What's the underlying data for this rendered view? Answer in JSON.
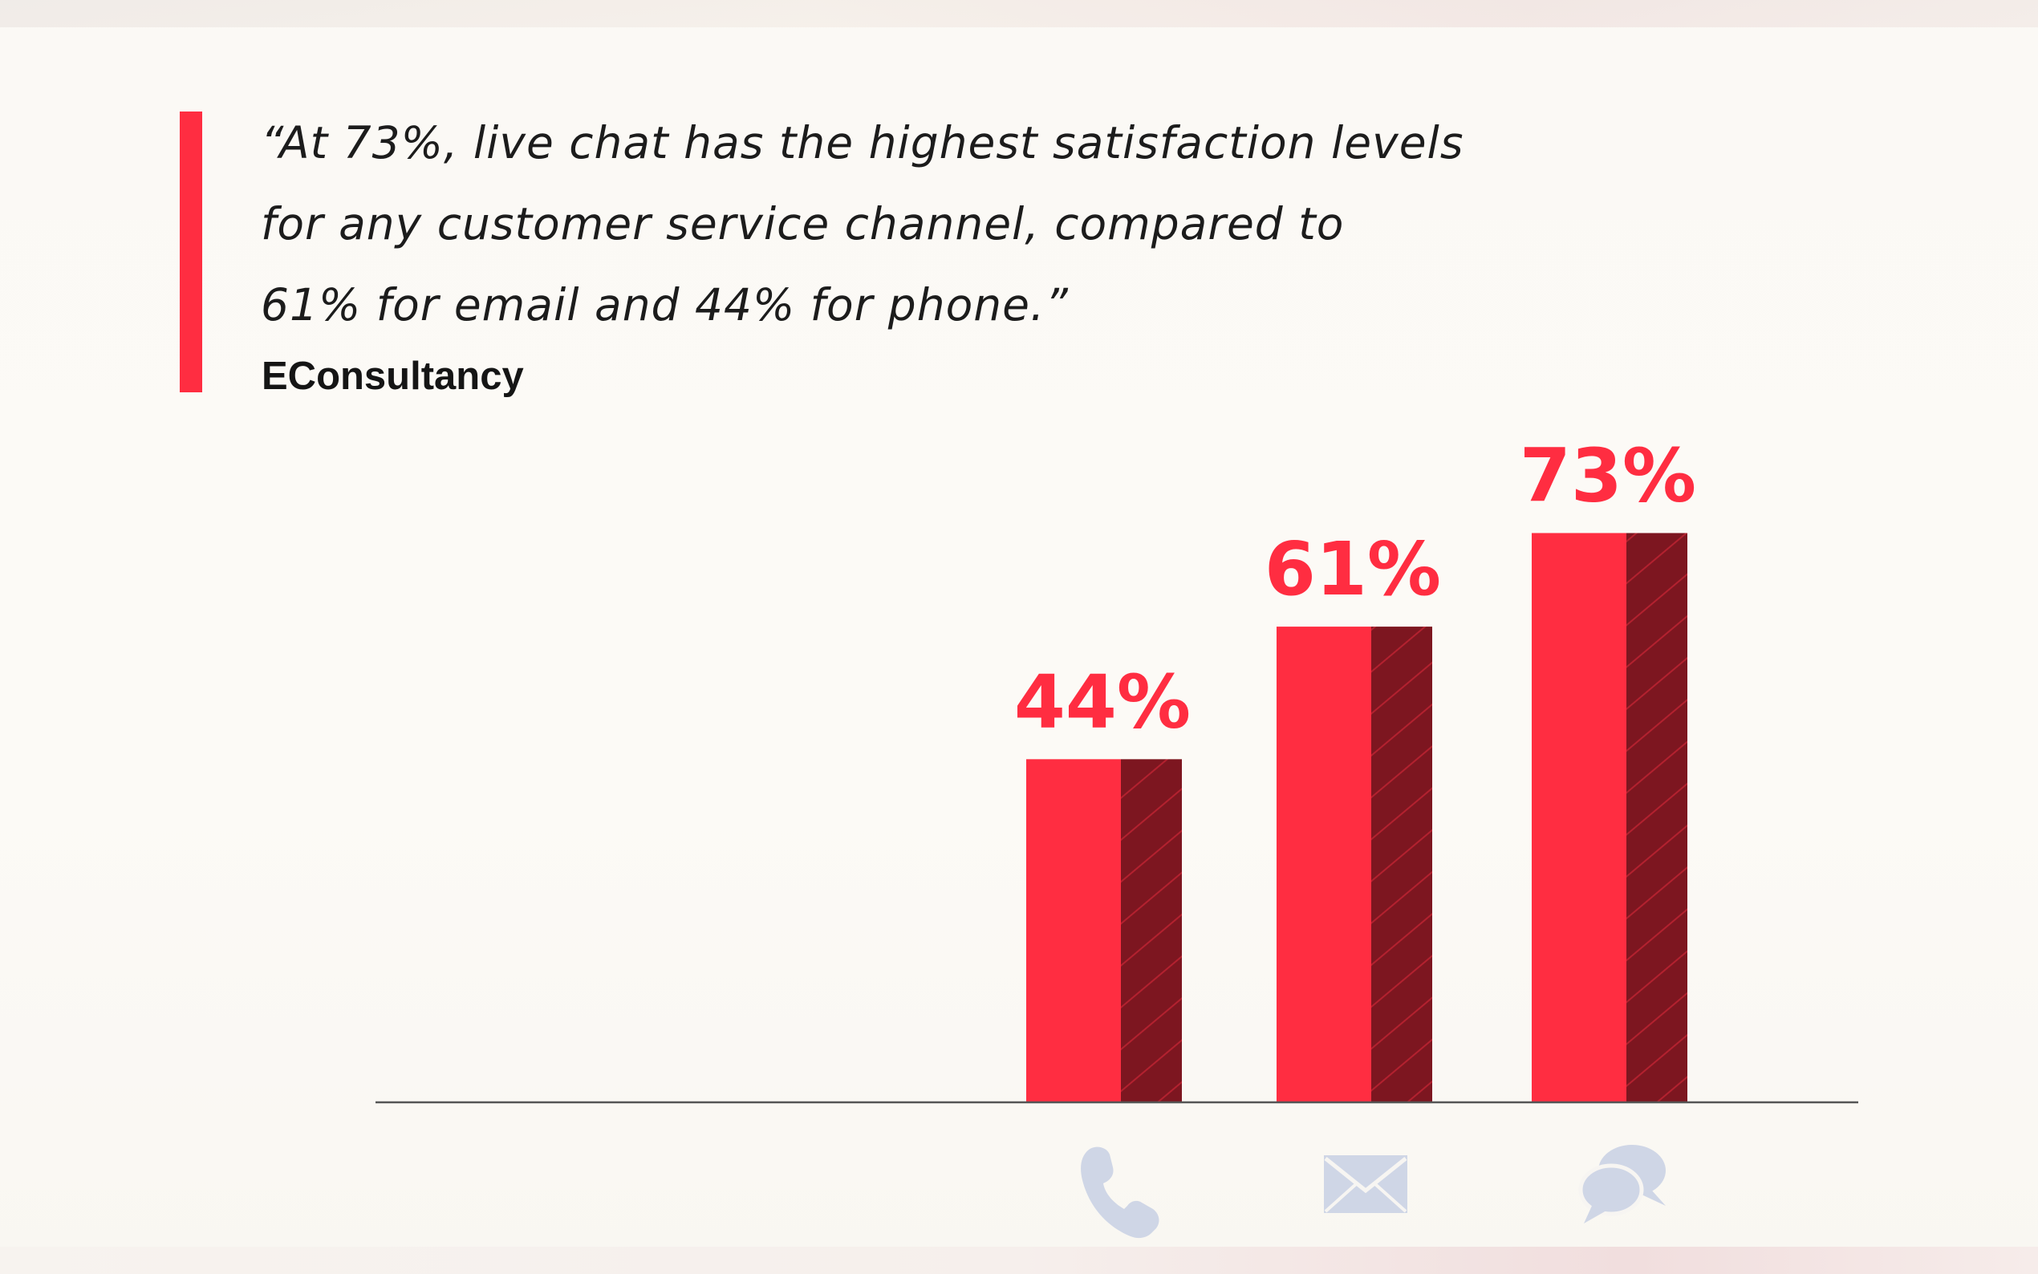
{
  "quote": {
    "lines": [
      "“At 73%, live chat has the highest satisfaction levels",
      "for any customer service channel, compared to",
      "61% for email and 44% for phone.”"
    ],
    "source": "EConsultancy"
  },
  "colors": {
    "accent": "#ff2d41",
    "accent_dark": "#7d1620",
    "icon": "#cfd6e6",
    "text": "#1c1c1c"
  },
  "chart_data": {
    "type": "bar",
    "title": "",
    "xlabel": "",
    "ylabel": "",
    "categories": [
      "Phone",
      "Email",
      "Live chat"
    ],
    "category_icons": [
      "phone-icon",
      "envelope-icon",
      "chat-bubbles-icon"
    ],
    "values": [
      44,
      61,
      73
    ],
    "value_labels": [
      "44%",
      "61%",
      "73%"
    ],
    "unit": "%",
    "ylim": [
      0,
      100
    ],
    "grid": false
  }
}
